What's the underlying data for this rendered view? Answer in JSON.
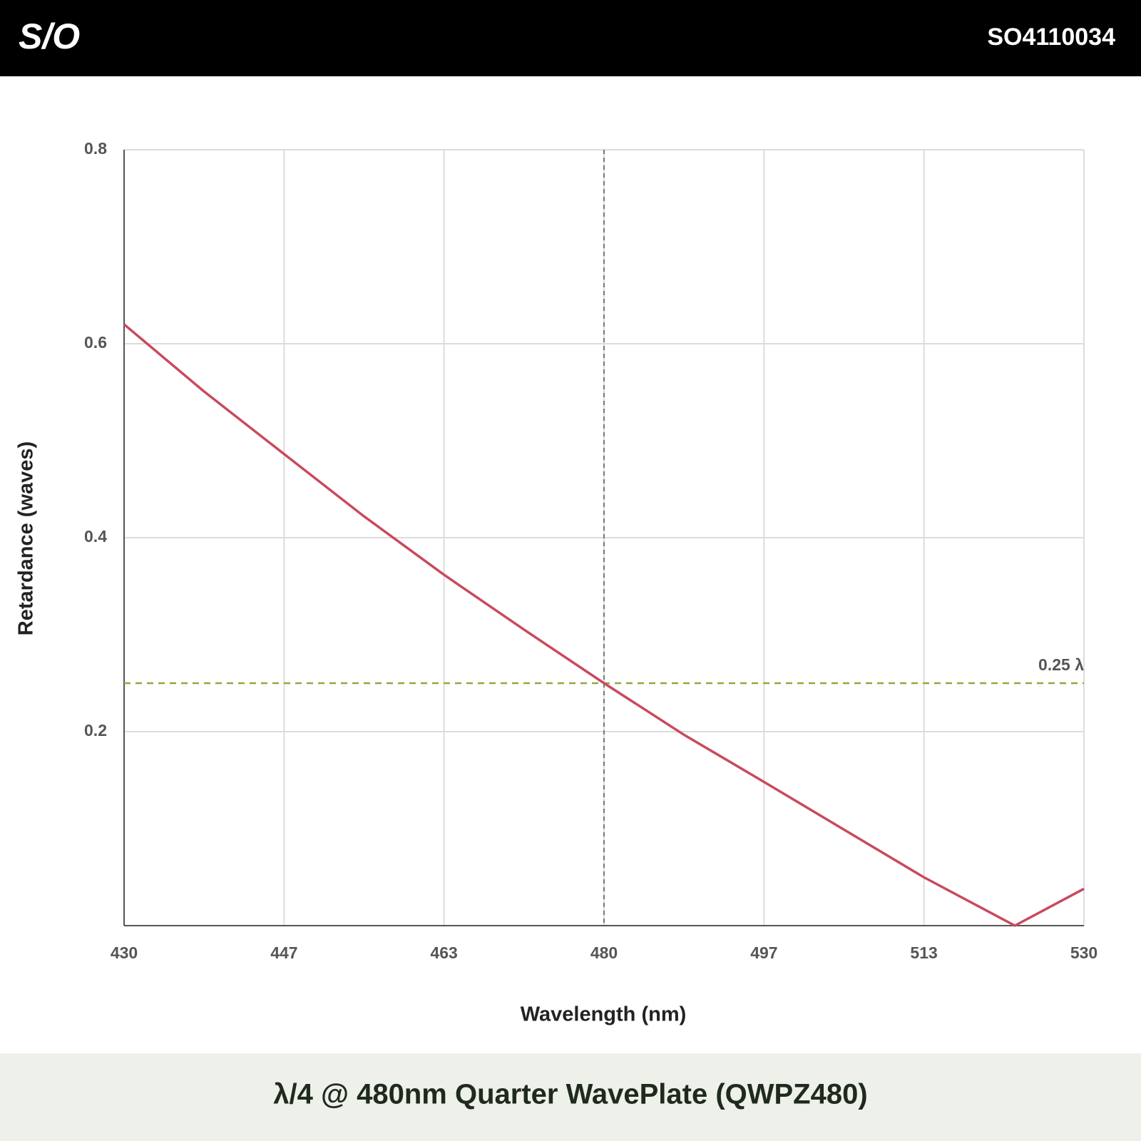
{
  "header": {
    "logo": "S/O",
    "code": "SO4110034"
  },
  "chart_data": {
    "type": "line",
    "title": "λ/4 @ 480nm Quarter WavePlate (QWPZ480)",
    "x_label": "Wavelength (nm)",
    "y_label": "Retardance (waves)",
    "x": [
      430,
      438.3,
      446.7,
      455,
      463.3,
      471.7,
      480,
      488.3,
      496.7,
      505,
      513.3,
      522.8,
      530
    ],
    "series": [
      {
        "name": "Retardance",
        "color": "#c94a5e",
        "values": [
          0.62,
          0.551,
          0.486,
          0.422,
          0.362,
          0.305,
          0.25,
          0.197,
          0.148,
          0.099,
          0.05,
          0,
          0.038
        ]
      }
    ],
    "xlim": [
      430,
      530
    ],
    "ylim": [
      0,
      0.8
    ],
    "xticks": [
      430,
      {
        "value": 446.67,
        "label": "447"
      },
      {
        "value": 463.33,
        "label": "463"
      },
      480,
      {
        "value": 496.67,
        "label": "497"
      },
      {
        "value": 513.33,
        "label": "513"
      },
      530
    ],
    "yticks": [
      {
        "value": 0.2,
        "label": "0.2"
      },
      {
        "value": 0.4,
        "label": "0.4"
      },
      {
        "value": 0.6,
        "label": "0.6"
      },
      {
        "value": 0.8,
        "label": "0.8"
      }
    ],
    "grid": true,
    "vline": {
      "value": 480,
      "color": "#777777"
    },
    "hline": {
      "value": 0.25,
      "label": "0.25 λ",
      "color": "#8faa3b"
    }
  }
}
